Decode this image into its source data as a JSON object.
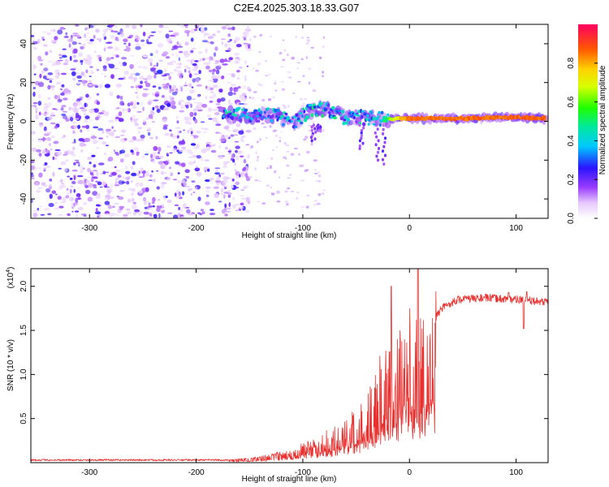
{
  "title": "C2E4.2025.303.18.33.G07",
  "chart_data": [
    {
      "type": "heatmap",
      "name": "spectrogram",
      "xlabel": "Height of straight line (km)",
      "ylabel": "Frequency (Hz)",
      "xlim": [
        -355,
        130
      ],
      "ylim": [
        -50,
        50
      ],
      "xticks": [
        -300,
        -200,
        -100,
        0,
        100
      ],
      "xtick_labels": [
        "-300",
        "-200",
        "-100",
        "0",
        "100"
      ],
      "yticks": [
        -40,
        -20,
        0,
        20,
        40
      ],
      "ytick_labels": [
        "-40",
        "-20",
        "0",
        "20",
        "40"
      ],
      "colorbar": {
        "label": "Normalized spectral amplitude",
        "range": [
          0,
          1
        ],
        "ticks": [
          0.0,
          0.2,
          0.4,
          0.6,
          0.8
        ],
        "tick_labels": [
          "0.0",
          "0.2",
          "0.4",
          "0.6",
          "0.8"
        ]
      },
      "features": {
        "noise_region_x": [
          -355,
          -150
        ],
        "signal_track": [
          {
            "x": -175,
            "y": 4,
            "amp": 0.55
          },
          {
            "x": -150,
            "y": 3,
            "amp": 0.45
          },
          {
            "x": -125,
            "y": 3,
            "amp": 0.5
          },
          {
            "x": -110,
            "y": -1,
            "amp": 0.5
          },
          {
            "x": -95,
            "y": 5,
            "amp": 0.55
          },
          {
            "x": -80,
            "y": 6,
            "amp": 0.55
          },
          {
            "x": -60,
            "y": 2,
            "amp": 0.5
          },
          {
            "x": -40,
            "y": 2,
            "amp": 0.5
          },
          {
            "x": -20,
            "y": 1,
            "amp": 0.65
          },
          {
            "x": 0,
            "y": 1.5,
            "amp": 0.9
          },
          {
            "x": 50,
            "y": 1.5,
            "amp": 0.9
          },
          {
            "x": 90,
            "y": 2,
            "amp": 0.9
          },
          {
            "x": 128,
            "y": 1.5,
            "amp": 0.9
          }
        ]
      }
    },
    {
      "type": "line",
      "name": "snr",
      "xlabel": "Height of straight line (km)",
      "ylabel": "SNR (10 * v/v)",
      "y_multiplier_label": "(x10",
      "y_multiplier_exp": "4",
      "y_multiplier_close": ")",
      "xlim": [
        -355,
        130
      ],
      "ylim": [
        0,
        22000
      ],
      "xticks": [
        -300,
        -200,
        -100,
        0,
        100
      ],
      "xtick_labels": [
        "-300",
        "-200",
        "-100",
        "0",
        "100"
      ],
      "yticks": [
        5000,
        10000,
        15000,
        20000
      ],
      "ytick_labels": [
        "0.5",
        "1.0",
        "1.5",
        "2.0"
      ],
      "color": "#e8312f",
      "envelope": [
        {
          "x": -355,
          "y": 300
        },
        {
          "x": -170,
          "y": 300
        },
        {
          "x": -140,
          "y": 700
        },
        {
          "x": -110,
          "y": 1500
        },
        {
          "x": -90,
          "y": 2500
        },
        {
          "x": -70,
          "y": 3500
        },
        {
          "x": -50,
          "y": 5000
        },
        {
          "x": -35,
          "y": 7500
        },
        {
          "x": -25,
          "y": 10500
        },
        {
          "x": -15,
          "y": 12500
        },
        {
          "x": 0,
          "y": 13500
        },
        {
          "x": 10,
          "y": 13000
        },
        {
          "x": 20,
          "y": 15500
        },
        {
          "x": 30,
          "y": 17500
        },
        {
          "x": 45,
          "y": 18500
        },
        {
          "x": 70,
          "y": 18700
        },
        {
          "x": 100,
          "y": 18500
        },
        {
          "x": 130,
          "y": 18200
        }
      ],
      "spikes": [
        {
          "x": -17,
          "y": 20000
        },
        {
          "x": 8,
          "y": 22000
        },
        {
          "x": 93,
          "y": 19300
        },
        {
          "x": 107,
          "y": 15200
        },
        {
          "x": 110,
          "y": 19400
        }
      ]
    }
  ]
}
